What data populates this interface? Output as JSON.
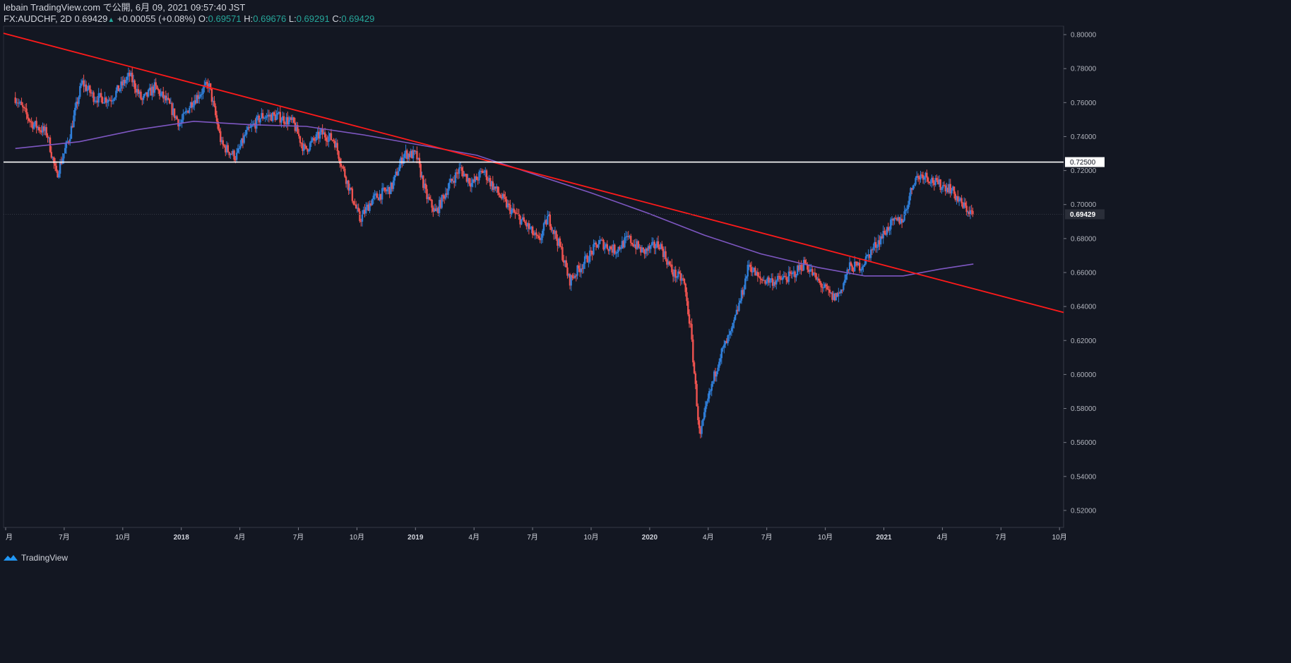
{
  "header": {
    "published": "lebain TradingView.com で公開, 6月 09, 2021 09:57:40 JST",
    "symbol": "FX:AUDCHF, 2D",
    "last": "0.69429",
    "change": "+0.00055 (+0.08%)",
    "o_label": "O:",
    "o_value": "0.69571",
    "h_label": "H:",
    "h_value": "0.69676",
    "l_label": "L:",
    "l_value": "0.69291",
    "c_label": "C:",
    "c_value": "0.69429"
  },
  "footer": {
    "brand": "TradingView"
  },
  "colors": {
    "background": "#131722",
    "up": "#2f7ed8",
    "down": "#ef5350",
    "trendline": "#ff1a1a",
    "ma": "#7e57c2",
    "level": "#ffffff"
  },
  "chart_data": {
    "type": "candlestick",
    "instrument": "FX:AUDCHF",
    "timeframe": "2D",
    "ylim": [
      0.51,
      0.805
    ],
    "y_ticks": [
      "0.80000",
      "0.78000",
      "0.76000",
      "0.74000",
      "0.72000",
      "0.70000",
      "0.68000",
      "0.66000",
      "0.64000",
      "0.62000",
      "0.60000",
      "0.58000",
      "0.56000",
      "0.54000",
      "0.52000"
    ],
    "x_ticks": [
      "月",
      "7月",
      "10月",
      "2018",
      "4月",
      "7月",
      "10月",
      "2019",
      "4月",
      "7月",
      "10月",
      "2020",
      "4月",
      "7月",
      "10月",
      "2021",
      "4月",
      "7月",
      "10月"
    ],
    "x_tick_bold": [
      false,
      false,
      false,
      true,
      false,
      false,
      false,
      true,
      false,
      false,
      false,
      true,
      false,
      false,
      false,
      true,
      false,
      false,
      false
    ],
    "x_range": [
      "2017-03",
      "2021-10"
    ],
    "price_path": [
      [
        "2017-03-20",
        0.763
      ],
      [
        "2017-04-15",
        0.748
      ],
      [
        "2017-05-10",
        0.742
      ],
      [
        "2017-05-25",
        0.717
      ],
      [
        "2017-06-15",
        0.74
      ],
      [
        "2017-07-05",
        0.772
      ],
      [
        "2017-07-25",
        0.763
      ],
      [
        "2017-08-20",
        0.762
      ],
      [
        "2017-09-20",
        0.776
      ],
      [
        "2017-10-10",
        0.761
      ],
      [
        "2017-10-30",
        0.769
      ],
      [
        "2017-11-20",
        0.76
      ],
      [
        "2017-12-10",
        0.747
      ],
      [
        "2017-12-28",
        0.76
      ],
      [
        "2018-01-25",
        0.771
      ],
      [
        "2018-02-15",
        0.735
      ],
      [
        "2018-03-10",
        0.728
      ],
      [
        "2018-03-25",
        0.741
      ],
      [
        "2018-04-20",
        0.752
      ],
      [
        "2018-05-15",
        0.752
      ],
      [
        "2018-06-10",
        0.748
      ],
      [
        "2018-06-28",
        0.732
      ],
      [
        "2018-07-25",
        0.742
      ],
      [
        "2018-08-15",
        0.738
      ],
      [
        "2018-08-28",
        0.722
      ],
      [
        "2018-09-25",
        0.691
      ],
      [
        "2018-10-15",
        0.703
      ],
      [
        "2018-11-15",
        0.71
      ],
      [
        "2018-12-05",
        0.73
      ],
      [
        "2018-12-25",
        0.729
      ],
      [
        "2019-01-10",
        0.705
      ],
      [
        "2019-01-25",
        0.695
      ],
      [
        "2019-02-15",
        0.711
      ],
      [
        "2019-03-05",
        0.721
      ],
      [
        "2019-03-25",
        0.712
      ],
      [
        "2019-04-12",
        0.72
      ],
      [
        "2019-04-25",
        0.712
      ],
      [
        "2019-05-25",
        0.697
      ],
      [
        "2019-06-20",
        0.688
      ],
      [
        "2019-07-10",
        0.678
      ],
      [
        "2019-07-25",
        0.693
      ],
      [
        "2019-08-15",
        0.673
      ],
      [
        "2019-08-28",
        0.655
      ],
      [
        "2019-09-25",
        0.668
      ],
      [
        "2019-10-15",
        0.678
      ],
      [
        "2019-11-10",
        0.673
      ],
      [
        "2019-12-01",
        0.68
      ],
      [
        "2019-12-25",
        0.672
      ],
      [
        "2020-01-20",
        0.677
      ],
      [
        "2020-02-10",
        0.66
      ],
      [
        "2020-02-28",
        0.655
      ],
      [
        "2020-03-10",
        0.627
      ],
      [
        "2020-03-25",
        0.562
      ],
      [
        "2020-04-05",
        0.582
      ],
      [
        "2020-04-25",
        0.61
      ],
      [
        "2020-05-15",
        0.625
      ],
      [
        "2020-06-01",
        0.648
      ],
      [
        "2020-06-12",
        0.665
      ],
      [
        "2020-06-28",
        0.656
      ],
      [
        "2020-07-25",
        0.655
      ],
      [
        "2020-08-20",
        0.658
      ],
      [
        "2020-09-10",
        0.666
      ],
      [
        "2020-09-28",
        0.656
      ],
      [
        "2020-10-25",
        0.645
      ],
      [
        "2020-11-05",
        0.648
      ],
      [
        "2020-11-20",
        0.663
      ],
      [
        "2020-12-10",
        0.664
      ],
      [
        "2020-12-28",
        0.674
      ],
      [
        "2021-01-25",
        0.688
      ],
      [
        "2021-02-15",
        0.692
      ],
      [
        "2021-03-05",
        0.715
      ],
      [
        "2021-03-20",
        0.718
      ],
      [
        "2021-04-10",
        0.712
      ],
      [
        "2021-05-01",
        0.71
      ],
      [
        "2021-05-20",
        0.7
      ],
      [
        "2021-06-08",
        0.694
      ]
    ],
    "ma_path": [
      [
        "2017-03-20",
        0.733
      ],
      [
        "2017-07-01",
        0.737
      ],
      [
        "2017-10-01",
        0.744
      ],
      [
        "2018-01-01",
        0.749
      ],
      [
        "2018-04-01",
        0.747
      ],
      [
        "2018-07-01",
        0.746
      ],
      [
        "2018-10-01",
        0.741
      ],
      [
        "2019-01-01",
        0.735
      ],
      [
        "2019-04-01",
        0.729
      ],
      [
        "2019-07-01",
        0.718
      ],
      [
        "2019-10-01",
        0.707
      ],
      [
        "2020-01-01",
        0.695
      ],
      [
        "2020-04-01",
        0.682
      ],
      [
        "2020-07-01",
        0.671
      ],
      [
        "2020-10-01",
        0.663
      ],
      [
        "2020-12-15",
        0.658
      ],
      [
        "2021-02-15",
        0.658
      ],
      [
        "2021-04-15",
        0.662
      ],
      [
        "2021-06-08",
        0.665
      ]
    ],
    "trendline": {
      "from": [
        "2017-03-01",
        0.8008
      ],
      "to": [
        "2021-10-31",
        0.6365
      ]
    },
    "horizontal_level": {
      "value": 0.725,
      "label": "0.72500"
    },
    "last_price": {
      "value": 0.69429,
      "label": "0.69429"
    }
  }
}
